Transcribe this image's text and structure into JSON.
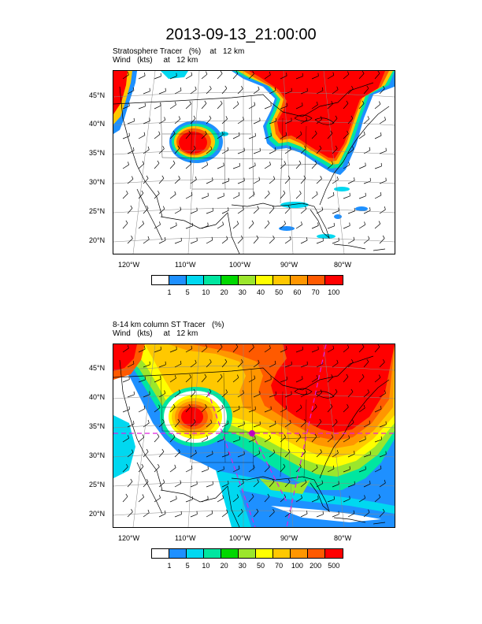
{
  "title": "2013-09-13_21:00:00",
  "panels": [
    {
      "subtitle1": "Stratosphere Tracer   (%)    at   12 km",
      "subtitle2": "Wind   (kts)     at   12 km",
      "lat_labels": [
        "45°N",
        "40°N",
        "35°N",
        "30°N",
        "25°N",
        "20°N"
      ],
      "lon_labels": [
        "120°W",
        "110°W",
        "100°W",
        "90°W",
        "80°W"
      ],
      "colorbar_labels": [
        "1",
        "5",
        "10",
        "20",
        "30",
        "40",
        "50",
        "60",
        "70",
        "100"
      ]
    },
    {
      "subtitle1": "8-14 km column ST Tracer   (%)",
      "subtitle2": "Wind   (kts)     at   12 km",
      "lat_labels": [
        "45°N",
        "40°N",
        "35°N",
        "30°N",
        "25°N",
        "20°N"
      ],
      "lon_labels": [
        "120°W",
        "110°W",
        "100°W",
        "90°W",
        "80°W"
      ],
      "colorbar_labels": [
        "1",
        "5",
        "10",
        "20",
        "30",
        "50",
        "70",
        "100",
        "200",
        "500"
      ]
    }
  ],
  "colorbar_colors": [
    "#ffffff",
    "#1e90ff",
    "#00d8f0",
    "#00e6a0",
    "#00d800",
    "#9be62c",
    "#ffff00",
    "#ffc800",
    "#ff9600",
    "#ff5a00",
    "#ff0000"
  ],
  "chart_data": [
    {
      "type": "heatmap",
      "title": "Stratosphere Tracer (%) at 12 km",
      "variable": "Stratosphere Tracer",
      "unit": "%",
      "overlay": "Wind barbs (kts) at 12 km",
      "lat_ticks": [
        45,
        40,
        35,
        30,
        25,
        20
      ],
      "lon_ticks": [
        -120,
        -110,
        -100,
        -90,
        -80
      ],
      "color_levels": [
        1,
        5,
        10,
        20,
        30,
        40,
        50,
        60,
        70,
        100
      ]
    },
    {
      "type": "heatmap",
      "title": "8-14 km column ST Tracer (%)",
      "variable": "8-14 km column ST Tracer",
      "unit": "%",
      "overlay": "Wind barbs (kts) at 12 km",
      "lat_ticks": [
        45,
        40,
        35,
        30,
        25,
        20
      ],
      "lon_ticks": [
        -120,
        -110,
        -100,
        -90,
        -80
      ],
      "color_levels": [
        1,
        5,
        10,
        20,
        30,
        50,
        70,
        100,
        200,
        500
      ]
    }
  ]
}
